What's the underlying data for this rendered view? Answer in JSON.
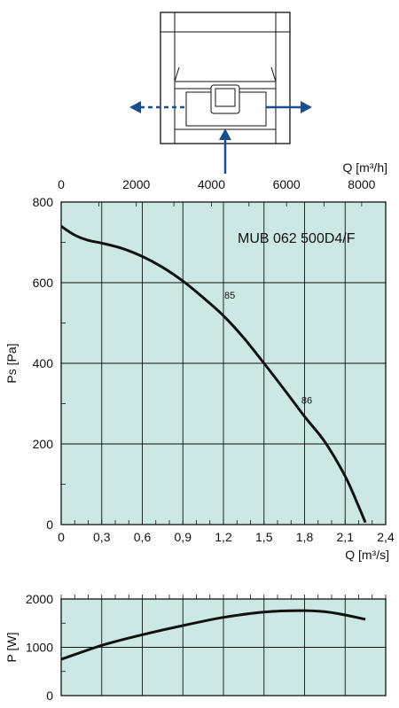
{
  "chart_data": [
    {
      "type": "line",
      "model_label": "MUB 062 500D4/F",
      "xlabel": "Q [m³/s]",
      "xlabel_top": "Q [m³/h]",
      "ylabel": "Ps [Pa]",
      "xlim": [
        0,
        2.4
      ],
      "ylim": [
        0,
        800
      ],
      "x_ticks": [
        "0",
        "0,3",
        "0,6",
        "0,9",
        "1,2",
        "1,5",
        "1,8",
        "2,1",
        "2,4"
      ],
      "x_tick_values": [
        0,
        0.3,
        0.6,
        0.9,
        1.2,
        1.5,
        1.8,
        2.1,
        2.4
      ],
      "x_top_ticks": [
        "0",
        "2000",
        "4000",
        "6000",
        "8000"
      ],
      "x_top_tick_values": [
        0,
        2000,
        4000,
        6000,
        8000
      ],
      "y_ticks": [
        "0",
        "200",
        "400",
        "600",
        "800"
      ],
      "y_tick_values": [
        0,
        200,
        400,
        600,
        800
      ],
      "grid": true,
      "background_color": "#cce8e4",
      "series": [
        {
          "x": [
            0,
            0.1,
            0.2,
            0.3,
            0.45,
            0.6,
            0.75,
            0.9,
            1.05,
            1.2,
            1.35,
            1.5,
            1.65,
            1.8,
            1.95,
            2.1,
            2.2,
            2.25
          ],
          "y": [
            740,
            718,
            705,
            698,
            685,
            665,
            638,
            604,
            563,
            518,
            463,
            400,
            335,
            268,
            205,
            120,
            45,
            5
          ]
        }
      ],
      "annotations": [
        {
          "text": "85",
          "x": 1.2,
          "y": 560
        },
        {
          "text": "86",
          "x": 1.77,
          "y": 300
        }
      ]
    },
    {
      "type": "line",
      "ylabel": "P [W]",
      "xlim": [
        0,
        2.4
      ],
      "ylim": [
        0,
        2000
      ],
      "y_ticks": [
        "0",
        "1000",
        "2000"
      ],
      "y_tick_values": [
        0,
        1000,
        2000
      ],
      "grid": true,
      "background_color": "#cce8e4",
      "series": [
        {
          "x": [
            0,
            0.3,
            0.6,
            0.9,
            1.2,
            1.5,
            1.8,
            2.0,
            2.25
          ],
          "y": [
            750,
            1040,
            1260,
            1450,
            1620,
            1730,
            1760,
            1720,
            1580
          ]
        }
      ]
    }
  ],
  "colors": {
    "arrow": "#1a4d8c",
    "curve": "#111111",
    "plot_bg": "#cce8e4"
  }
}
